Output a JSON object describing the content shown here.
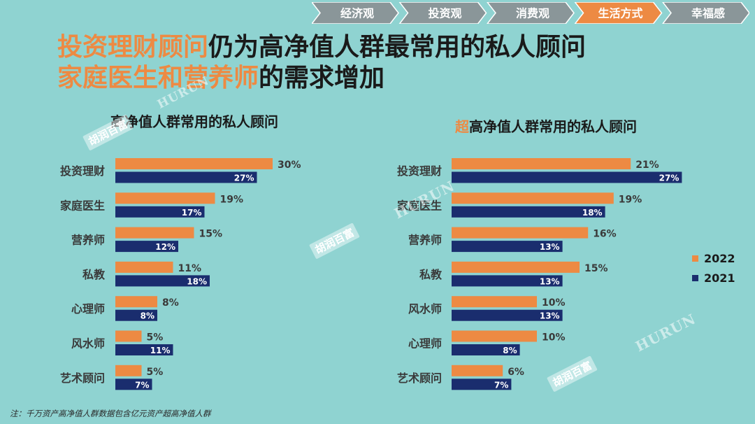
{
  "nav": {
    "tabs": [
      {
        "label": "经济观",
        "active": false
      },
      {
        "label": "投资观",
        "active": false
      },
      {
        "label": "消费观",
        "active": false
      },
      {
        "label": "生活方式",
        "active": true
      },
      {
        "label": "幸福感",
        "active": false
      }
    ]
  },
  "title": {
    "line1_highlight": "投资理财顾问",
    "line1_rest": "仍为高净值人群最常用的私人顾问",
    "line2_highlight": "家庭医生和营养师",
    "line2_rest": "的需求增加"
  },
  "legend": {
    "series_2022": "2022",
    "series_2021": "2021"
  },
  "colors": {
    "s2022": "#ed8a43",
    "s2021": "#1a2d6e",
    "background": "#8fd3d1"
  },
  "watermark": {
    "brand_cn": "胡润百富",
    "brand_en": "HURUN"
  },
  "footnote": "注：千万资产高净值人群数据包含亿元资产超高净值人群",
  "chart_data": [
    {
      "type": "bar",
      "orientation": "horizontal",
      "title": "高净值人群常用的私人顾问",
      "title_prefix": "",
      "categories": [
        "投资理财",
        "家庭医生",
        "营养师",
        "私教",
        "心理师",
        "风水师",
        "艺术顾问"
      ],
      "series": [
        {
          "name": "2022",
          "values": [
            30,
            19,
            15,
            11,
            8,
            5,
            5
          ],
          "labels": [
            "30%",
            "19%",
            "15%",
            "11%",
            "8%",
            "5%",
            "5%"
          ]
        },
        {
          "name": "2021",
          "values": [
            27,
            17,
            12,
            18,
            8,
            11,
            7
          ],
          "labels": [
            "27%",
            "17%",
            "12%",
            "18%",
            "8%",
            "11%",
            "7%"
          ]
        }
      ],
      "unit": "%"
    },
    {
      "type": "bar",
      "orientation": "horizontal",
      "title": "高净值人群常用的私人顾问",
      "title_prefix": "超",
      "categories": [
        "投资理财",
        "家庭医生",
        "营养师",
        "私教",
        "风水师",
        "心理师",
        "艺术顾问"
      ],
      "series": [
        {
          "name": "2022",
          "values": [
            21,
            19,
            16,
            15,
            10,
            10,
            6
          ],
          "labels": [
            "21%",
            "19%",
            "16%",
            "15%",
            "10%",
            "10%",
            "6%"
          ]
        },
        {
          "name": "2021",
          "values": [
            27,
            18,
            13,
            13,
            13,
            8,
            7
          ],
          "labels": [
            "27%",
            "18%",
            "13%",
            "13%",
            "13%",
            "8%",
            "7%"
          ]
        }
      ],
      "unit": "%"
    }
  ]
}
